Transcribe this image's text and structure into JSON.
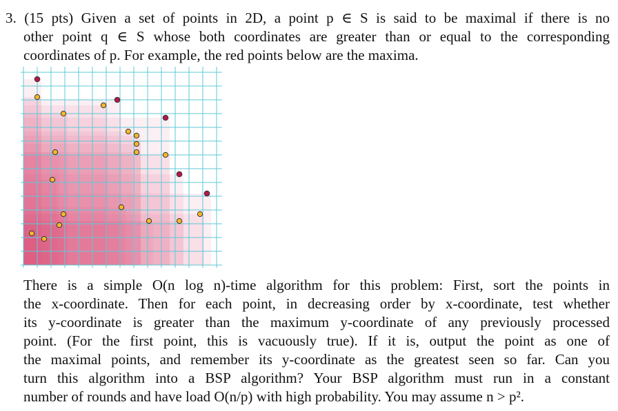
{
  "problem": {
    "lines": [
      "3. (15 pts) Given a set of points in 2D, a point p ∈ S is said to be maximal if there is no",
      "other point q ∈ S whose both coordinates are greater than or equal to the corresponding",
      "coordinates of p. For example, the red points below are the maxima."
    ]
  },
  "algorithm": {
    "lines": [
      "There is a simple O(n log n)-time algorithm for this problem: First, sort the points in",
      "the x-coordinate. Then for each point, in decreasing order by x-coordinate, test whether",
      "its y-coordinate is greater than the maximum y-coordinate of any previously processed",
      "point. (For the first point, this is vacuously true). If it is, output the point as one of",
      "the maximal points, and remember its y-coordinate as the greatest seen so far. Can you",
      "turn this algorithm into a BSP algorithm? Your BSP algorithm must run in a constant",
      "number of rounds and have load O(n/p) with high probability. You may assume n > p²."
    ]
  },
  "figure": {
    "colors": {
      "grid": "#5cc9d6",
      "region": "#d94f7f",
      "maximal": "#b4184a",
      "non_maximal": "#f5b82a",
      "point_outline": "#333333"
    },
    "grid": {
      "columns": 14,
      "rows": 14
    },
    "maximal_points": [
      {
        "x": 1,
        "y": 13.5
      },
      {
        "x": 6.8,
        "y": 12
      },
      {
        "x": 10.3,
        "y": 10.7
      },
      {
        "x": 11.3,
        "y": 6.6
      },
      {
        "x": 13.3,
        "y": 5.2
      }
    ],
    "non_maximal_points": [
      {
        "x": 1,
        "y": 12.2
      },
      {
        "x": 2.9,
        "y": 11
      },
      {
        "x": 5.8,
        "y": 11.6
      },
      {
        "x": 7.6,
        "y": 9.7
      },
      {
        "x": 8.2,
        "y": 9.4
      },
      {
        "x": 8.2,
        "y": 8.8
      },
      {
        "x": 8.2,
        "y": 8.2
      },
      {
        "x": 10.3,
        "y": 8.0
      },
      {
        "x": 2.3,
        "y": 8.2
      },
      {
        "x": 2.1,
        "y": 6.2
      },
      {
        "x": 7.1,
        "y": 4.2
      },
      {
        "x": 2.9,
        "y": 3.7
      },
      {
        "x": 9.1,
        "y": 3.2
      },
      {
        "x": 11.3,
        "y": 3.2
      },
      {
        "x": 12.8,
        "y": 3.7
      },
      {
        "x": 2.6,
        "y": 2.9
      },
      {
        "x": 0.6,
        "y": 2.3
      },
      {
        "x": 1.5,
        "y": 1.9
      }
    ]
  }
}
